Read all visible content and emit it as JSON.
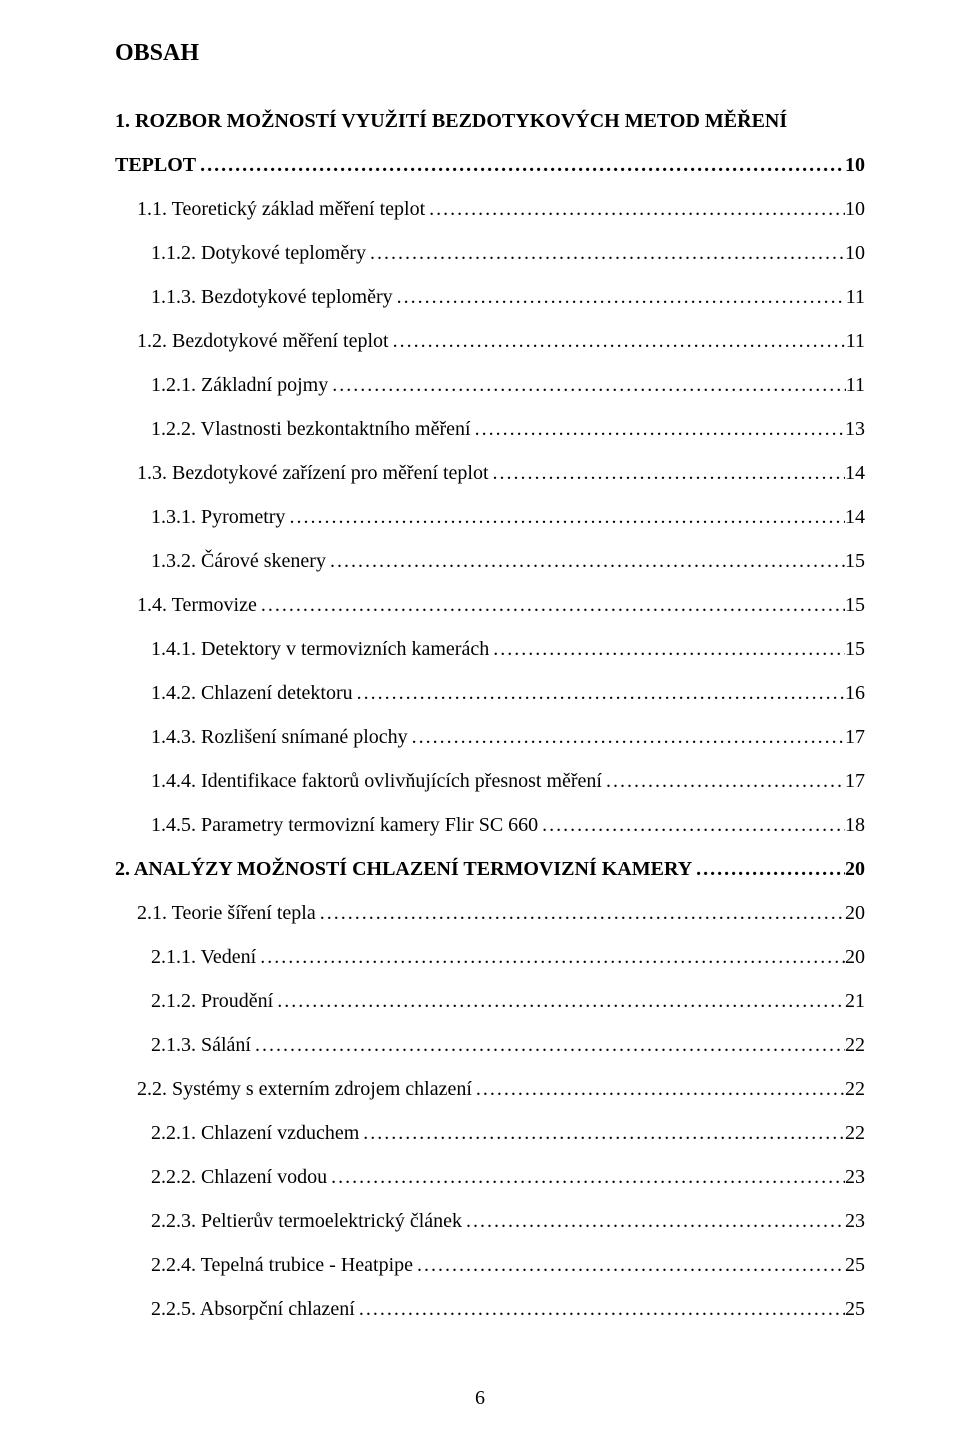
{
  "title": "OBSAH",
  "page_number": "6",
  "dots": "..................................................................................................................................................................................................................",
  "toc": [
    {
      "label": "1. ROZBOR MOŽNOSTÍ VYUŽITÍ BEZDOTYKOVÝCH METOD MĚŘENÍ TEPLOT",
      "page": "10",
      "indent": 0,
      "bold": true,
      "wrap": true
    },
    {
      "label": "1.1. Teoretický základ měření teplot",
      "page": "10",
      "indent": 1,
      "bold": false
    },
    {
      "label": "1.1.2. Dotykové teploměry",
      "page": "10",
      "indent": 2,
      "bold": false
    },
    {
      "label": "1.1.3. Bezdotykové teploměry",
      "page": "11",
      "indent": 2,
      "bold": false
    },
    {
      "label": "1.2. Bezdotykové měření teplot",
      "page": "11",
      "indent": 1,
      "bold": false
    },
    {
      "label": "1.2.1. Základní pojmy",
      "page": "11",
      "indent": 2,
      "bold": false
    },
    {
      "label": "1.2.2. Vlastnosti bezkontaktního měření",
      "page": "13",
      "indent": 2,
      "bold": false
    },
    {
      "label": "1.3. Bezdotykové zařízení pro měření teplot",
      "page": "14",
      "indent": 1,
      "bold": false
    },
    {
      "label": "1.3.1. Pyrometry",
      "page": "14",
      "indent": 2,
      "bold": false
    },
    {
      "label": "1.3.2. Čárové skenery",
      "page": "15",
      "indent": 2,
      "bold": false
    },
    {
      "label": "1.4. Termovize",
      "page": "15",
      "indent": 1,
      "bold": false
    },
    {
      "label": "1.4.1. Detektory v termovizních kamerách",
      "page": "15",
      "indent": 2,
      "bold": false
    },
    {
      "label": "1.4.2. Chlazení detektoru",
      "page": "16",
      "indent": 2,
      "bold": false
    },
    {
      "label": "1.4.3. Rozlišení snímané plochy",
      "page": "17",
      "indent": 2,
      "bold": false
    },
    {
      "label": "1.4.4. Identifikace faktorů ovlivňujících přesnost měření",
      "page": "17",
      "indent": 2,
      "bold": false
    },
    {
      "label": "1.4.5. Parametry termovizní kamery Flir SC 660",
      "page": "18",
      "indent": 2,
      "bold": false
    },
    {
      "label": "2. ANALÝZY MOŽNOSTÍ CHLAZENÍ TERMOVIZNÍ KAMERY",
      "page": "20",
      "indent": 0,
      "bold": true
    },
    {
      "label": "2.1. Teorie šíření tepla",
      "page": "20",
      "indent": 1,
      "bold": false
    },
    {
      "label": "2.1.1. Vedení",
      "page": "20",
      "indent": 2,
      "bold": false
    },
    {
      "label": "2.1.2. Proudění",
      "page": "21",
      "indent": 2,
      "bold": false
    },
    {
      "label": "2.1.3. Sálání",
      "page": "22",
      "indent": 2,
      "bold": false
    },
    {
      "label": "2.2. Systémy s externím zdrojem chlazení",
      "page": "22",
      "indent": 1,
      "bold": false
    },
    {
      "label": "2.2.1. Chlazení vzduchem",
      "page": "22",
      "indent": 2,
      "bold": false
    },
    {
      "label": "2.2.2. Chlazení vodou",
      "page": "23",
      "indent": 2,
      "bold": false
    },
    {
      "label": "2.2.3. Peltierův termoelektrický článek",
      "page": "23",
      "indent": 2,
      "bold": false
    },
    {
      "label": "2.2.4. Tepelná trubice - Heatpipe",
      "page": "25",
      "indent": 2,
      "bold": false
    },
    {
      "label": "2.2.5. Absorpční chlazení",
      "page": "25",
      "indent": 2,
      "bold": false
    }
  ]
}
